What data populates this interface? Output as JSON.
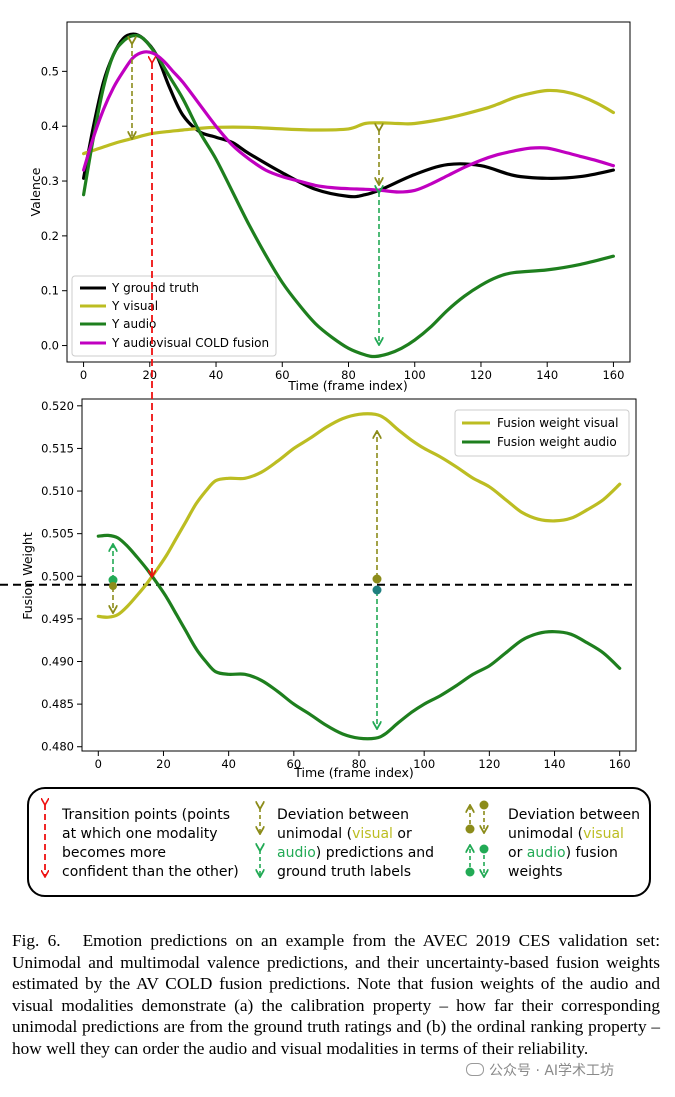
{
  "chart_data": [
    {
      "type": "line",
      "ylabel": "Valence",
      "xlabel": "Time (frame index)",
      "xlim": [
        -5,
        165
      ],
      "ylim": [
        -0.03,
        0.59
      ],
      "xticks": [
        0,
        20,
        40,
        60,
        80,
        100,
        120,
        140,
        160
      ],
      "yticks": [
        0.0,
        0.1,
        0.2,
        0.3,
        0.4,
        0.5
      ],
      "ytick_labels": [
        "0.0",
        "0.1",
        "0.2",
        "0.3",
        "0.4",
        "0.5"
      ],
      "legend_position": "lower-left",
      "series": [
        {
          "name": "Y ground truth",
          "color": "#000000",
          "x": [
            0,
            3,
            6,
            9,
            12,
            15,
            18,
            22,
            26,
            30,
            35,
            40,
            45,
            50,
            60,
            70,
            80,
            85,
            90,
            100,
            110,
            120,
            130,
            140,
            150,
            160
          ],
          "y": [
            0.305,
            0.4,
            0.48,
            0.53,
            0.56,
            0.568,
            0.56,
            0.53,
            0.47,
            0.42,
            0.39,
            0.38,
            0.37,
            0.35,
            0.315,
            0.285,
            0.272,
            0.275,
            0.285,
            0.312,
            0.33,
            0.328,
            0.31,
            0.305,
            0.308,
            0.32
          ]
        },
        {
          "name": "Y visual",
          "color": "#bcbd22",
          "x": [
            0,
            5,
            10,
            15,
            20,
            25,
            30,
            35,
            40,
            50,
            60,
            70,
            80,
            85,
            90,
            95,
            100,
            110,
            120,
            125,
            130,
            135,
            140,
            145,
            150,
            155,
            160
          ],
          "y": [
            0.35,
            0.36,
            0.37,
            0.378,
            0.386,
            0.39,
            0.393,
            0.396,
            0.398,
            0.398,
            0.395,
            0.393,
            0.395,
            0.405,
            0.406,
            0.405,
            0.405,
            0.415,
            0.43,
            0.44,
            0.452,
            0.46,
            0.465,
            0.463,
            0.455,
            0.442,
            0.425
          ]
        },
        {
          "name": "Y audio",
          "color": "#1e7f1e",
          "x": [
            0,
            3,
            6,
            9,
            12,
            15,
            18,
            22,
            26,
            30,
            35,
            40,
            45,
            50,
            55,
            60,
            65,
            70,
            75,
            80,
            85,
            88,
            92,
            96,
            100,
            105,
            110,
            115,
            120,
            125,
            130,
            140,
            150,
            160
          ],
          "y": [
            0.275,
            0.38,
            0.47,
            0.53,
            0.555,
            0.565,
            0.56,
            0.53,
            0.49,
            0.45,
            0.39,
            0.34,
            0.28,
            0.22,
            0.165,
            0.115,
            0.075,
            0.04,
            0.015,
            -0.005,
            -0.017,
            -0.02,
            -0.015,
            -0.005,
            0.01,
            0.035,
            0.065,
            0.09,
            0.11,
            0.125,
            0.133,
            0.138,
            0.148,
            0.163
          ]
        },
        {
          "name": "Y audiovisual COLD fusion",
          "color": "#c000c0",
          "x": [
            0,
            3,
            6,
            9,
            12,
            15,
            18,
            21,
            24,
            27,
            30,
            35,
            40,
            45,
            50,
            55,
            60,
            65,
            70,
            75,
            80,
            85,
            90,
            95,
            100,
            105,
            110,
            115,
            120,
            125,
            130,
            135,
            140,
            145,
            150,
            155,
            160
          ],
          "y": [
            0.32,
            0.38,
            0.43,
            0.47,
            0.5,
            0.525,
            0.535,
            0.533,
            0.52,
            0.5,
            0.48,
            0.44,
            0.4,
            0.365,
            0.34,
            0.32,
            0.308,
            0.3,
            0.292,
            0.288,
            0.286,
            0.285,
            0.283,
            0.28,
            0.283,
            0.295,
            0.31,
            0.325,
            0.338,
            0.348,
            0.355,
            0.36,
            0.36,
            0.353,
            0.345,
            0.337,
            0.328
          ]
        }
      ]
    },
    {
      "type": "line",
      "ylabel": "Fusion Weight",
      "xlabel": "Time (frame index)",
      "xlim": [
        -5,
        165
      ],
      "ylim": [
        0.4795,
        0.5208
      ],
      "xticks": [
        0,
        20,
        40,
        60,
        80,
        100,
        120,
        140,
        160
      ],
      "yticks": [
        0.48,
        0.485,
        0.49,
        0.495,
        0.5,
        0.505,
        0.51,
        0.515,
        0.52
      ],
      "ytick_labels": [
        "0.480",
        "0.485",
        "0.490",
        "0.495",
        "0.500",
        "0.505",
        "0.510",
        "0.515",
        "0.520"
      ],
      "reference_line": 0.499,
      "legend_position": "upper-right",
      "series": [
        {
          "name": "Fusion weight visual",
          "color": "#bcbd22",
          "x": [
            0,
            3,
            6,
            9,
            12,
            15,
            18,
            21,
            24,
            27,
            30,
            33,
            36,
            40,
            45,
            50,
            55,
            60,
            65,
            70,
            75,
            80,
            85,
            88,
            92,
            96,
            100,
            105,
            110,
            115,
            120,
            125,
            130,
            135,
            140,
            145,
            150,
            155,
            160
          ],
          "y": [
            0.4953,
            0.4952,
            0.4955,
            0.4965,
            0.4978,
            0.4992,
            0.5008,
            0.5025,
            0.5045,
            0.5065,
            0.5085,
            0.51,
            0.5112,
            0.5115,
            0.5115,
            0.5122,
            0.5135,
            0.515,
            0.5162,
            0.5175,
            0.5185,
            0.519,
            0.519,
            0.5185,
            0.5172,
            0.516,
            0.515,
            0.514,
            0.5128,
            0.5115,
            0.5105,
            0.509,
            0.5075,
            0.5067,
            0.5065,
            0.5068,
            0.5078,
            0.509,
            0.5108
          ]
        },
        {
          "name": "Fusion weight audio",
          "color": "#1e7f1e",
          "x": [
            0,
            3,
            6,
            9,
            12,
            15,
            18,
            21,
            24,
            27,
            30,
            33,
            36,
            40,
            45,
            50,
            55,
            60,
            65,
            70,
            75,
            80,
            85,
            88,
            92,
            96,
            100,
            105,
            110,
            115,
            120,
            125,
            130,
            135,
            140,
            145,
            150,
            155,
            160
          ],
          "y": [
            0.5047,
            0.5048,
            0.5045,
            0.5035,
            0.5022,
            0.5008,
            0.4992,
            0.4975,
            0.4955,
            0.4935,
            0.4915,
            0.49,
            0.4888,
            0.4885,
            0.4885,
            0.4878,
            0.4865,
            0.485,
            0.4838,
            0.4825,
            0.4815,
            0.481,
            0.481,
            0.4815,
            0.4828,
            0.484,
            0.485,
            0.486,
            0.4872,
            0.4885,
            0.4895,
            0.491,
            0.4925,
            0.4933,
            0.4935,
            0.4932,
            0.4922,
            0.491,
            0.4892
          ]
        }
      ]
    }
  ],
  "legend_box": {
    "transition_text": [
      "Transition points (points",
      "at which one modality",
      "becomes more",
      "confident than the other)"
    ],
    "deviation_pred": {
      "line1": "Deviation between",
      "l2a": "unimodal (",
      "l2b": "visual",
      "l2c": " or",
      "l3a": "audio",
      "l3b": ") predictions and",
      "line4": "ground truth labels"
    },
    "deviation_weight": {
      "line1": "Deviation between",
      "l2a": "unimodal (",
      "l2b": "visual",
      "l3a": "or ",
      "l3b": "audio",
      "l3c": ") fusion",
      "line4": "weights"
    }
  },
  "caption": {
    "label": "Fig. 6.",
    "text": "Emotion predictions on an example from the AVEC 2019 CES validation set: Unimodal and multimodal valence predictions, and their uncertainty-based fusion weights estimated by the AV COLD fusion predictions. Note that fusion weights of the audio and visual modalities demonstrate (a) the calibration property – how far their corresponding unimodal predictions are from the ground truth ratings and (b) the ordinal ranking property – how well they can order the audio and visual modalities in terms of their reliability."
  },
  "watermark": "公众号 · AI学术工坊",
  "colors": {
    "visual": "#bcbd22",
    "visual_dark": "#8c8c1a",
    "audio": "#1e7f1e",
    "audio_arrow": "#22aa55",
    "transition": "#ee1111",
    "fusion": "#c000c0"
  }
}
